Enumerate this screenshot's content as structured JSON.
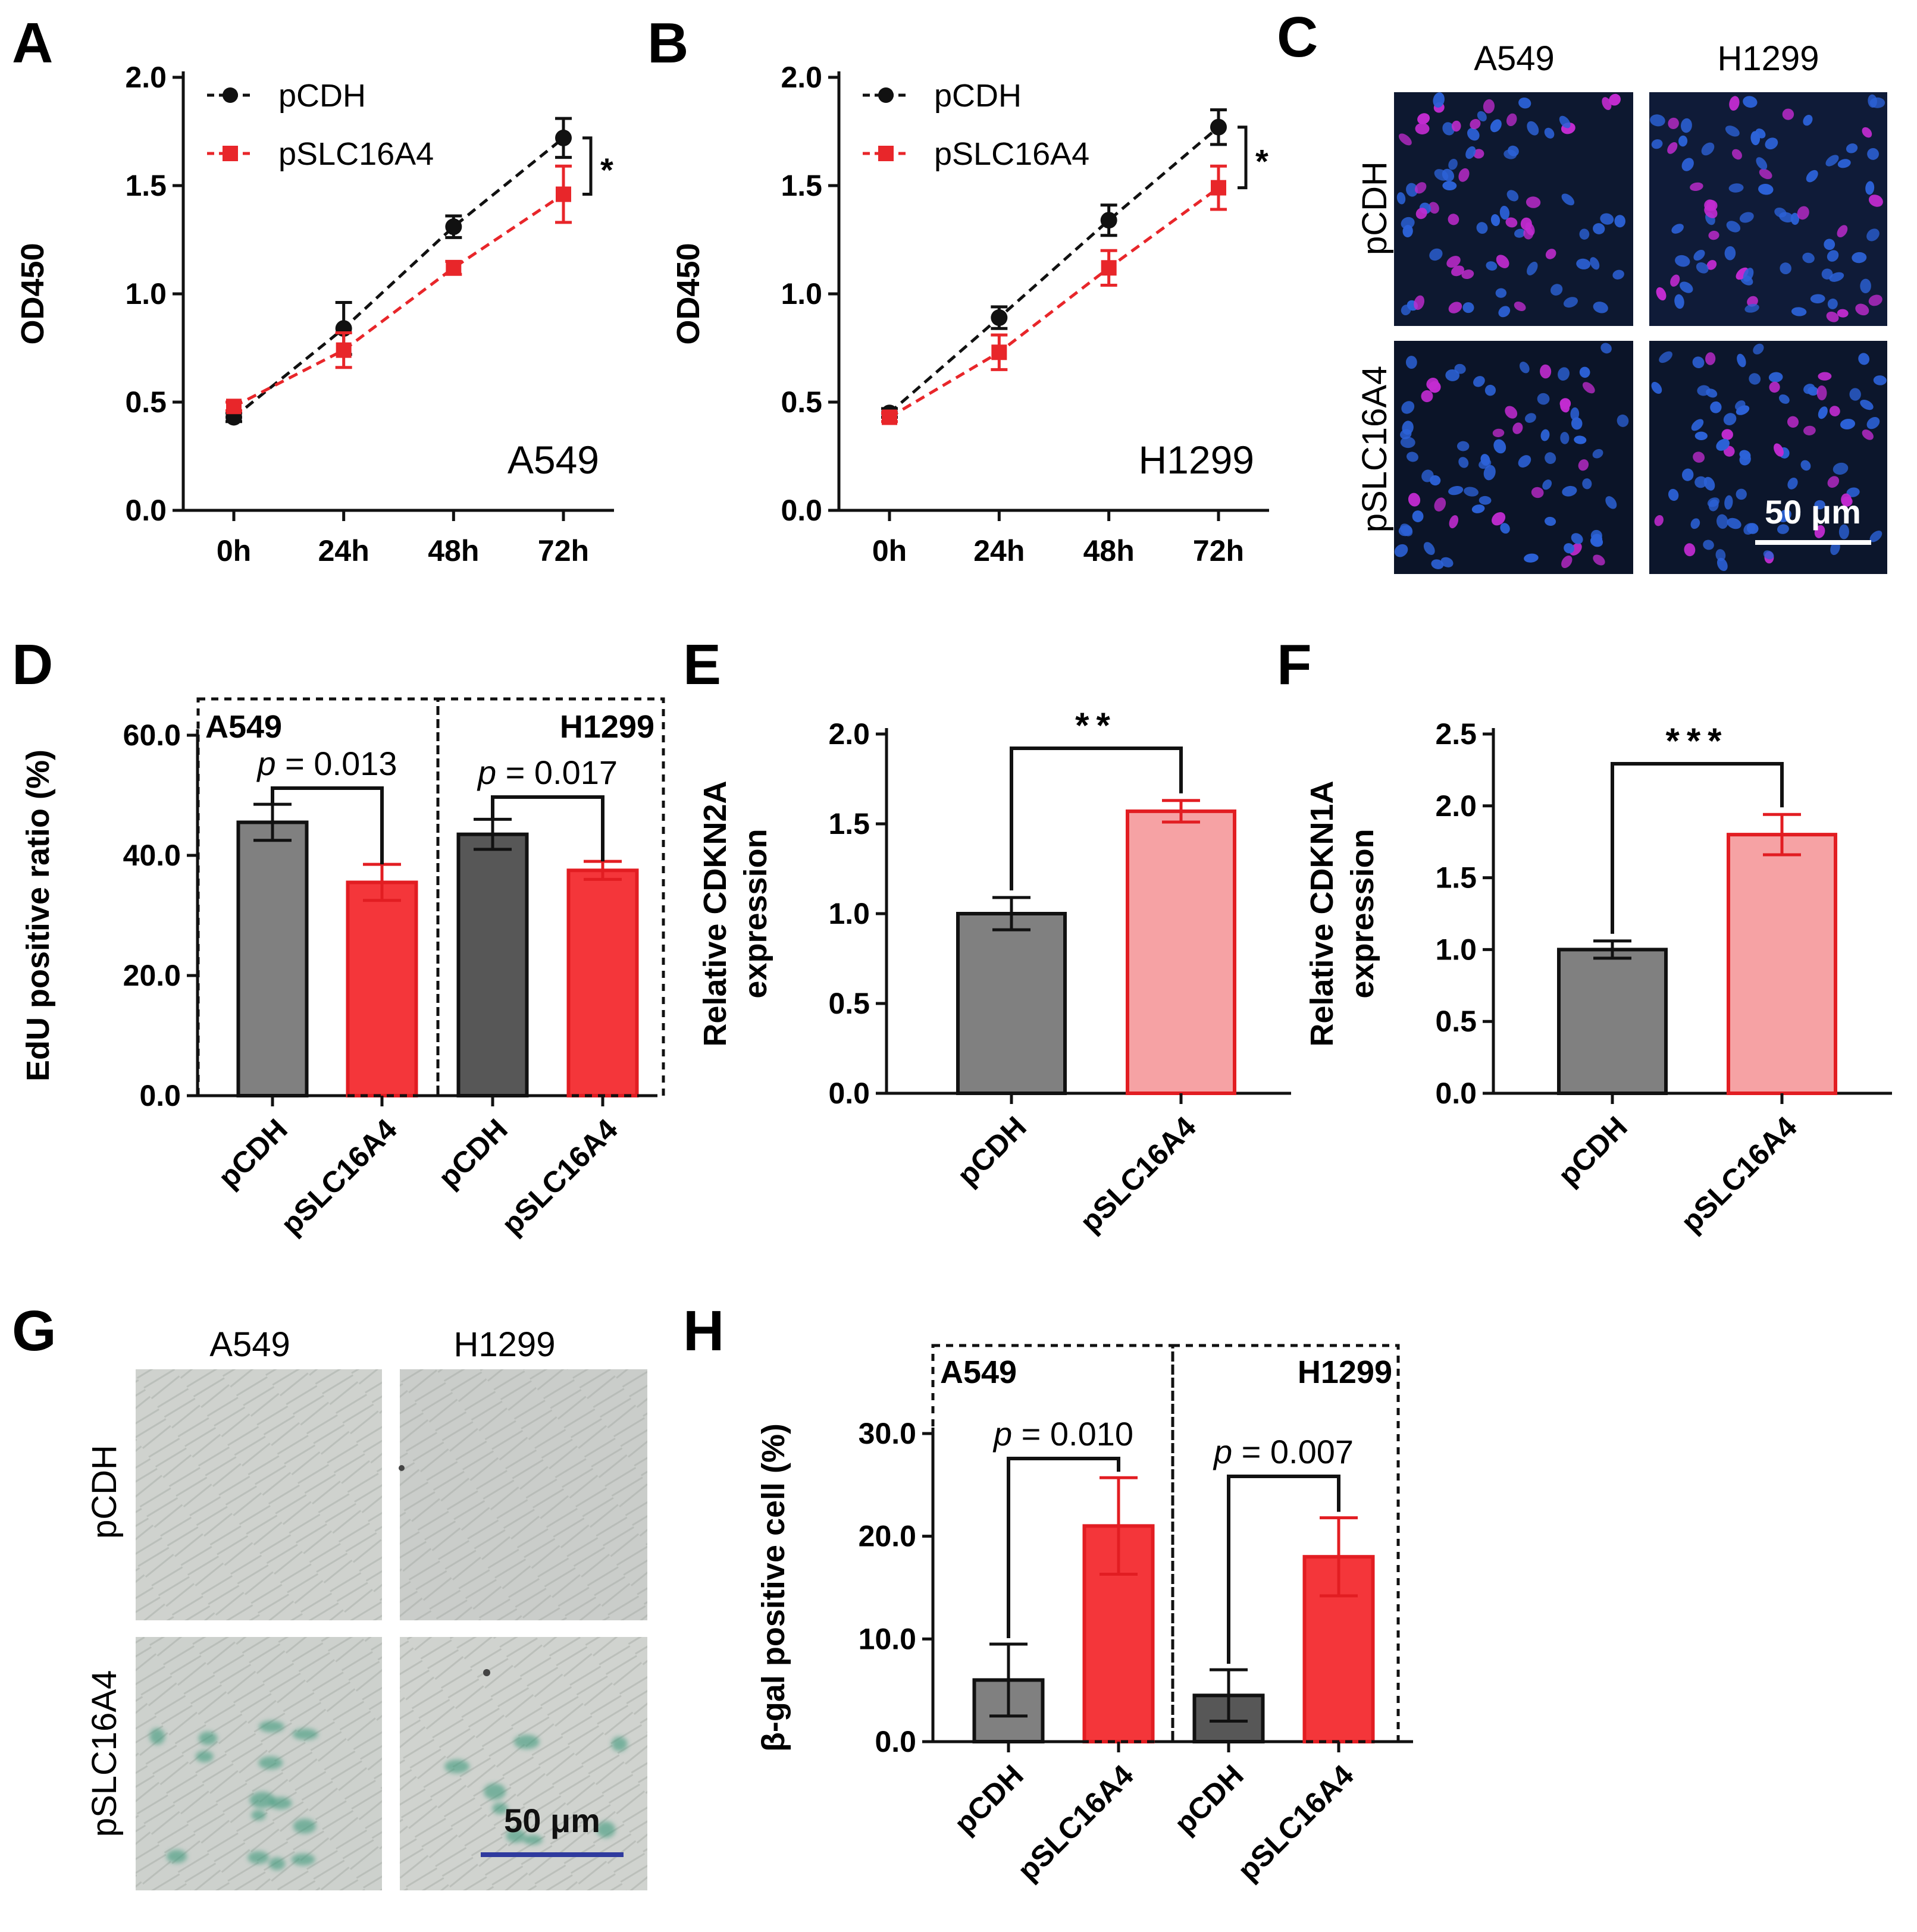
{
  "chart_data": [
    {
      "panel": "A",
      "type": "line",
      "categories": [
        "0h",
        "24h",
        "48h",
        "72h"
      ],
      "ylabel": "OD450",
      "ylim": [
        0,
        2.0
      ],
      "yticks": [
        "0.0",
        "0.5",
        "1.0",
        "1.5",
        "2.0"
      ],
      "annotation": "A549",
      "significance": "*",
      "legend_position": "top-left",
      "series": [
        {
          "name": "pCDH",
          "values": [
            0.43,
            0.84,
            1.31,
            1.72
          ],
          "errors": [
            0.02,
            0.12,
            0.05,
            0.09
          ],
          "color": "#111111",
          "marker": "circle"
        },
        {
          "name": "pSLC16A4",
          "values": [
            0.48,
            0.74,
            1.12,
            1.46
          ],
          "errors": [
            0.02,
            0.08,
            0.03,
            0.13
          ],
          "color": "#e8262a",
          "marker": "square"
        }
      ]
    },
    {
      "panel": "B",
      "type": "line",
      "categories": [
        "0h",
        "24h",
        "48h",
        "72h"
      ],
      "ylabel": "OD450",
      "ylim": [
        0,
        2.0
      ],
      "yticks": [
        "0.0",
        "0.5",
        "1.0",
        "1.5",
        "2.0"
      ],
      "annotation": "H1299",
      "significance": "*",
      "legend_position": "top-left",
      "series": [
        {
          "name": "pCDH",
          "values": [
            0.45,
            0.89,
            1.34,
            1.77
          ],
          "errors": [
            0.02,
            0.05,
            0.07,
            0.08
          ],
          "color": "#111111",
          "marker": "circle"
        },
        {
          "name": "pSLC16A4",
          "values": [
            0.43,
            0.73,
            1.12,
            1.49
          ],
          "errors": [
            0.02,
            0.08,
            0.08,
            0.1
          ],
          "color": "#e8262a",
          "marker": "square"
        }
      ]
    },
    {
      "panel": "D",
      "type": "bar",
      "categories": [
        "pCDH",
        "pSLC16A4",
        "pCDH",
        "pSLC16A4"
      ],
      "values": [
        45.5,
        35.5,
        43.5,
        37.5
      ],
      "errors": [
        3.0,
        3.0,
        2.5,
        1.5
      ],
      "colors": [
        "#808080",
        "#f4363a",
        "#575757",
        "#f4363a"
      ],
      "ylabel": "EdU positive ratio (%)",
      "ylim": [
        0,
        60
      ],
      "yticks": [
        "0.0",
        "20.0",
        "40.0",
        "60.0"
      ],
      "groups": [
        {
          "label": "A549",
          "pvalue": "= 0.013"
        },
        {
          "label": "H1299",
          "pvalue": "= 0.017"
        }
      ],
      "p_symbol": "p"
    },
    {
      "panel": "E",
      "type": "bar",
      "categories": [
        "pCDH",
        "pSLC16A4"
      ],
      "values": [
        1.0,
        1.57
      ],
      "errors": [
        0.09,
        0.06
      ],
      "colors": [
        "#808080",
        "#f6a2a4"
      ],
      "ylabel_lines": [
        "Relative CDKN2A",
        "expression"
      ],
      "ylim": [
        0,
        2.0
      ],
      "yticks": [
        "0.0",
        "0.5",
        "1.0",
        "1.5",
        "2.0"
      ],
      "significance": "**"
    },
    {
      "panel": "F",
      "type": "bar",
      "categories": [
        "pCDH",
        "pSLC16A4"
      ],
      "values": [
        1.0,
        1.8
      ],
      "errors": [
        0.06,
        0.14
      ],
      "colors": [
        "#808080",
        "#f6a2a4"
      ],
      "ylabel_lines": [
        "Relative CDKN1A",
        "expression"
      ],
      "ylim": [
        0,
        2.5
      ],
      "yticks": [
        "0.0",
        "0.5",
        "1.0",
        "1.5",
        "2.0",
        "2.5"
      ],
      "significance": "***"
    },
    {
      "panel": "H",
      "type": "bar",
      "categories": [
        "pCDH",
        "pSLC16A4",
        "pCDH",
        "pSLC16A4"
      ],
      "values": [
        6.0,
        21.0,
        4.5,
        18.0
      ],
      "errors": [
        3.5,
        4.7,
        2.5,
        3.8
      ],
      "colors": [
        "#808080",
        "#f4363a",
        "#575757",
        "#f4363a"
      ],
      "ylabel": "β-gal positive cell (%)",
      "ylim": [
        0,
        30
      ],
      "yticks": [
        "0.0",
        "10.0",
        "20.0",
        "30.0"
      ],
      "groups": [
        {
          "label": "A549",
          "pvalue": "= 0.010"
        },
        {
          "label": "H1299",
          "pvalue": "= 0.007"
        }
      ],
      "p_symbol": "p"
    }
  ],
  "panels": {
    "A": "A",
    "B": "B",
    "C": "C",
    "D": "D",
    "E": "E",
    "F": "F",
    "G": "G",
    "H": "H"
  },
  "micrographs": {
    "C": {
      "columns": [
        "A549",
        "H1299"
      ],
      "rows": [
        "pCDH",
        "pSLC16A4"
      ],
      "scale_bar": "50 μm",
      "stain": "EdU/DAPI fluorescence"
    },
    "G": {
      "columns": [
        "A549",
        "H1299"
      ],
      "rows": [
        "pCDH",
        "pSLC16A4"
      ],
      "scale_bar": "50 μm",
      "stain": "β-gal brightfield"
    }
  },
  "colors": {
    "black": "#111111",
    "red": "#e8262a",
    "grey": "#808080",
    "dark_grey": "#575757",
    "pink": "#f6a2a4",
    "bright_red": "#f4363a"
  }
}
